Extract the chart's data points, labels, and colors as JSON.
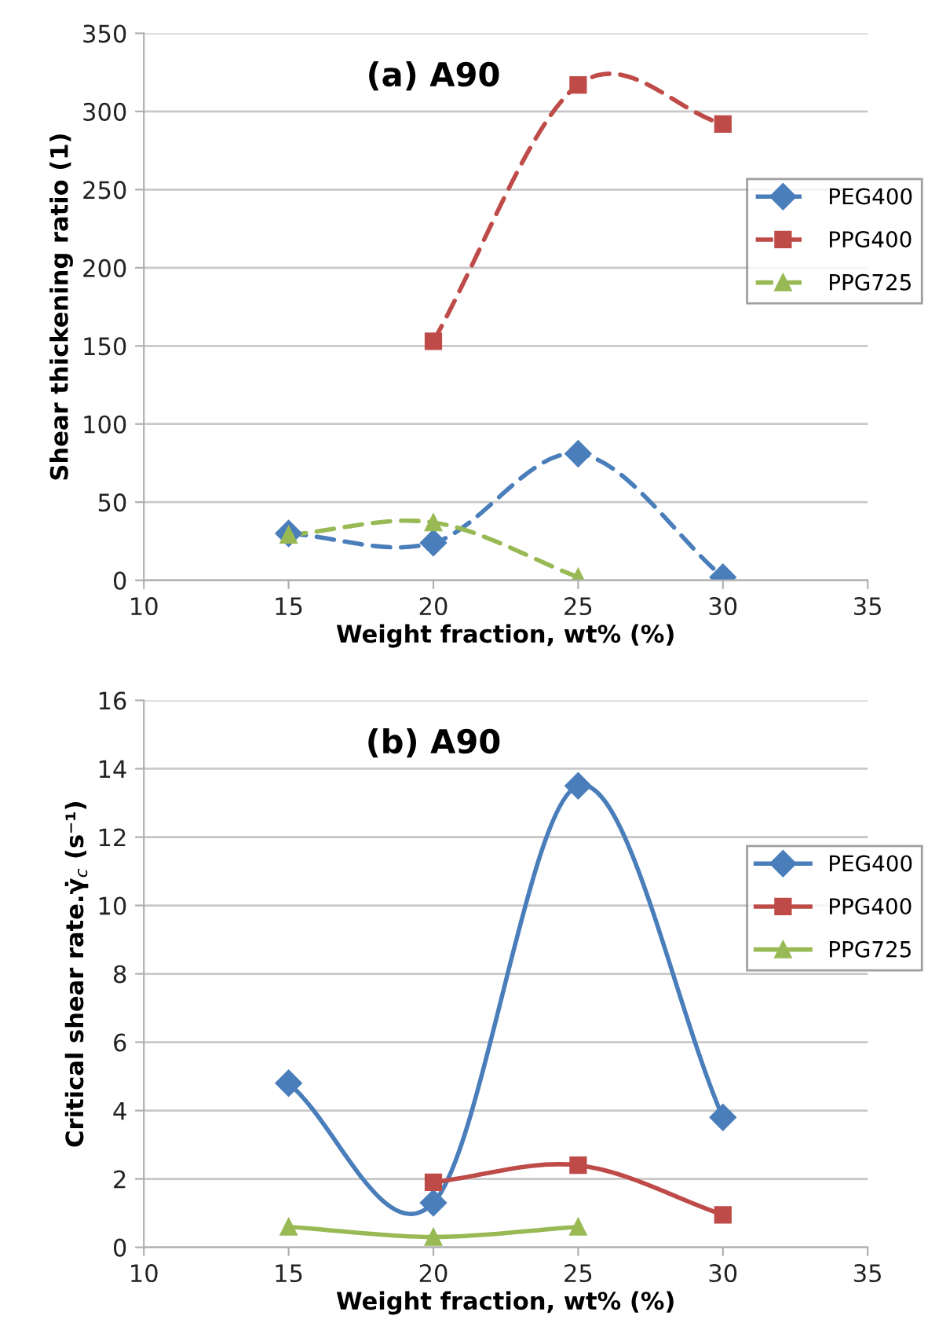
{
  "chart_data": [
    {
      "type": "line",
      "title": "(a) A90",
      "xlabel": "Weight fraction, wt% (%)",
      "ylabel": "Shear thickening ratio (1)",
      "x": [
        15,
        20,
        25,
        30
      ],
      "xlim": [
        10,
        35
      ],
      "xticks": [
        10,
        15,
        20,
        25,
        30,
        35
      ],
      "ylim": [
        0,
        350
      ],
      "yticks": [
        0,
        50,
        100,
        150,
        200,
        250,
        300,
        350
      ],
      "grid": "y",
      "legend": "right",
      "line_style": "dashed",
      "series": [
        {
          "name": "PEG400",
          "color": "#4a7ebb",
          "marker": "diamond",
          "values": [
            30,
            24,
            81,
            2
          ]
        },
        {
          "name": "PPG400",
          "color": "#be4b48",
          "marker": "square",
          "values": [
            null,
            153,
            317,
            292
          ]
        },
        {
          "name": "PPG725",
          "color": "#98b954",
          "marker": "triangle",
          "values": [
            29,
            37,
            2,
            null
          ]
        }
      ]
    },
    {
      "type": "line",
      "title": "(b) A90",
      "xlabel": "Weight fraction, wt% (%)",
      "ylabel": "Critical shear rate.γ̇$_{c}$ (s⁻¹)",
      "x": [
        15,
        20,
        25,
        30
      ],
      "xlim": [
        10,
        35
      ],
      "xticks": [
        10,
        15,
        20,
        25,
        30,
        35
      ],
      "ylim": [
        0,
        16
      ],
      "yticks": [
        0,
        2,
        4,
        6,
        8,
        10,
        12,
        14,
        16
      ],
      "grid": "y",
      "legend": "right",
      "line_style": "solid",
      "series": [
        {
          "name": "PEG400",
          "color": "#4a7ebb",
          "marker": "diamond",
          "values": [
            4.8,
            1.3,
            13.5,
            3.8
          ]
        },
        {
          "name": "PPG400",
          "color": "#be4b48",
          "marker": "square",
          "values": [
            null,
            1.9,
            2.4,
            0.95
          ]
        },
        {
          "name": "PPG725",
          "color": "#98b954",
          "marker": "triangle",
          "values": [
            0.6,
            0.3,
            0.6,
            null
          ]
        }
      ]
    }
  ]
}
